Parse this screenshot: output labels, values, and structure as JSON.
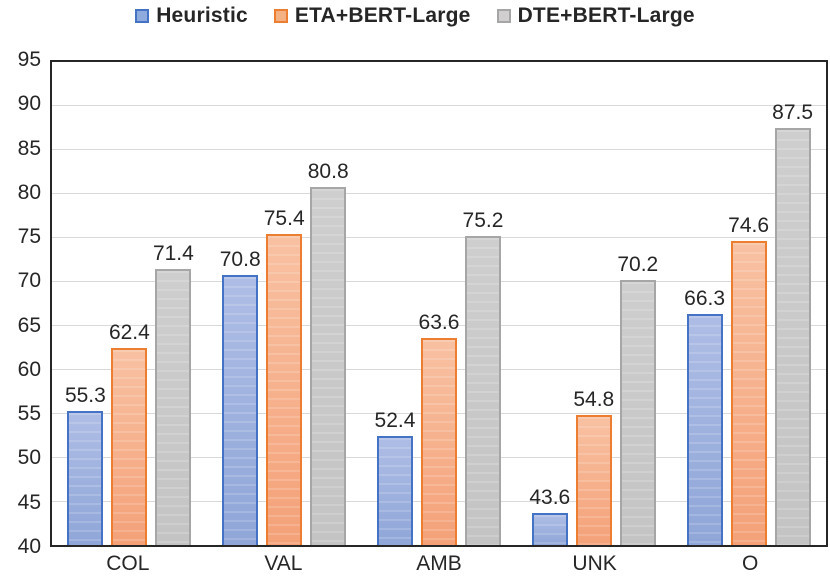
{
  "chart_data": {
    "type": "bar",
    "title": "",
    "categories": [
      "COL",
      "VAL",
      "AMB",
      "UNK",
      "O"
    ],
    "series": [
      {
        "name": "Heuristic",
        "values": [
          55.3,
          70.8,
          52.4,
          43.6,
          66.3
        ],
        "fill_light": "#aebde5",
        "fill_dark": "#8fa6d8",
        "border": "#4472c4",
        "legend_fill": "#8faadc"
      },
      {
        "name": "ETA+BERT-Large",
        "values": [
          62.4,
          75.4,
          63.6,
          54.8,
          74.6
        ],
        "fill_light": "#f8c1a2",
        "fill_dark": "#f4a178",
        "border": "#ed7d31",
        "legend_fill": "#f4b183"
      },
      {
        "name": "DTE+BERT-Large",
        "values": [
          71.4,
          80.8,
          75.2,
          70.2,
          87.5
        ],
        "fill_light": "#cecece",
        "fill_dark": "#c4c4c4",
        "border": "#a6a6a6",
        "legend_fill": "#d0cece"
      }
    ],
    "ylim": [
      40,
      95
    ],
    "ytick_step": 5,
    "yticks": [
      40,
      45,
      50,
      55,
      60,
      65,
      70,
      75,
      80,
      85,
      90,
      95
    ],
    "grid": true,
    "gridline_color": "#d9d9d9",
    "axis_border_color": "#262626",
    "legend_position": "top",
    "data_labels": true,
    "data_label_decimals": 1
  }
}
